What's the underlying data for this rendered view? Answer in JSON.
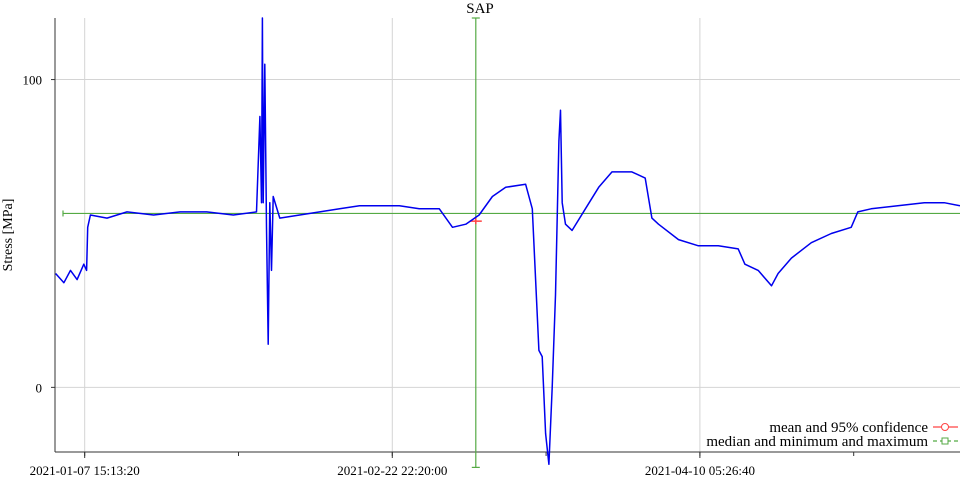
{
  "chart_data": {
    "type": "line",
    "title": "SAP",
    "ylabel": "Stress [MPa]",
    "xlabel": "",
    "ylim": [
      -21,
      120
    ],
    "xlim": [
      "2021-01-03 04:00:00",
      "2021-05-19 09:00:00"
    ],
    "x_ticks": [
      {
        "x": "2021-01-07 15:13:20",
        "label": "2021-01-07 15:13:20"
      },
      {
        "x": "2021-02-22 22:20:00",
        "label": "2021-02-22 22:20:00"
      },
      {
        "x": "2021-04-10 05:26:40",
        "label": "2021-04-10 05:26:40"
      }
    ],
    "y_ticks": [
      {
        "y": 0,
        "label": "0"
      },
      {
        "y": 100,
        "label": "100"
      }
    ],
    "grid": true,
    "legend": "bottom-right",
    "colors": {
      "series": "#0000ee",
      "mean": "#ff4444",
      "median": "#55aa44",
      "grid": "#d4d4d4",
      "axis": "#333333"
    },
    "series": [
      {
        "color": "#0000ee",
        "points": [
          [
            "2021-01-03 06:00:00",
            37
          ],
          [
            "2021-01-04 12:00:00",
            34
          ],
          [
            "2021-01-05 12:00:00",
            38
          ],
          [
            "2021-01-06 12:00:00",
            35
          ],
          [
            "2021-01-07 12:00:00",
            40
          ],
          [
            "2021-01-07 22:00:00",
            38
          ],
          [
            "2021-01-08 02:00:00",
            52
          ],
          [
            "2021-01-08 12:00:00",
            56
          ],
          [
            "2021-01-11 00:00:00",
            55
          ],
          [
            "2021-01-14 00:00:00",
            57
          ],
          [
            "2021-01-18 00:00:00",
            56
          ],
          [
            "2021-01-22 00:00:00",
            57
          ],
          [
            "2021-01-26 00:00:00",
            57
          ],
          [
            "2021-01-30 00:00:00",
            56
          ],
          [
            "2021-02-02 12:00:00",
            57
          ],
          [
            "2021-02-03 00:00:00",
            88
          ],
          [
            "2021-02-03 06:00:00",
            60
          ],
          [
            "2021-02-03 09:00:00",
            120
          ],
          [
            "2021-02-03 12:00:00",
            60
          ],
          [
            "2021-02-03 18:00:00",
            105
          ],
          [
            "2021-02-04 00:00:00",
            52
          ],
          [
            "2021-02-04 06:00:00",
            14
          ],
          [
            "2021-02-04 12:00:00",
            60
          ],
          [
            "2021-02-04 18:00:00",
            38
          ],
          [
            "2021-02-05 00:00:00",
            62
          ],
          [
            "2021-02-06 00:00:00",
            55
          ],
          [
            "2021-02-09 00:00:00",
            56
          ],
          [
            "2021-02-12 00:00:00",
            57
          ],
          [
            "2021-02-15 00:00:00",
            58
          ],
          [
            "2021-02-18 00:00:00",
            59
          ],
          [
            "2021-02-21 00:00:00",
            59
          ],
          [
            "2021-02-24 00:00:00",
            59
          ],
          [
            "2021-02-27 00:00:00",
            58
          ],
          [
            "2021-03-02 00:00:00",
            58
          ],
          [
            "2021-03-04 00:00:00",
            52
          ],
          [
            "2021-03-06 00:00:00",
            53
          ],
          [
            "2021-03-08 00:00:00",
            56
          ],
          [
            "2021-03-10 00:00:00",
            62
          ],
          [
            "2021-03-12 00:00:00",
            65
          ],
          [
            "2021-03-15 00:00:00",
            66
          ],
          [
            "2021-03-16 00:00:00",
            58
          ],
          [
            "2021-03-17 00:00:00",
            12
          ],
          [
            "2021-03-17 12:00:00",
            10
          ],
          [
            "2021-03-18 00:00:00",
            -15
          ],
          [
            "2021-03-18 12:00:00",
            -25
          ],
          [
            "2021-03-19 00:00:00",
            0
          ],
          [
            "2021-03-19 12:00:00",
            30
          ],
          [
            "2021-03-20 00:00:00",
            80
          ],
          [
            "2021-03-20 06:00:00",
            90
          ],
          [
            "2021-03-20 12:00:00",
            60
          ],
          [
            "2021-03-21 00:00:00",
            53
          ],
          [
            "2021-03-22 00:00:00",
            51
          ],
          [
            "2021-03-24 00:00:00",
            58
          ],
          [
            "2021-03-26 00:00:00",
            65
          ],
          [
            "2021-03-28 00:00:00",
            70
          ],
          [
            "2021-03-31 00:00:00",
            70
          ],
          [
            "2021-04-02 00:00:00",
            68
          ],
          [
            "2021-04-03 00:00:00",
            55
          ],
          [
            "2021-04-04 00:00:00",
            53
          ],
          [
            "2021-04-07 00:00:00",
            48
          ],
          [
            "2021-04-10 00:00:00",
            46
          ],
          [
            "2021-04-13 00:00:00",
            46
          ],
          [
            "2021-04-16 00:00:00",
            45
          ],
          [
            "2021-04-17 00:00:00",
            40
          ],
          [
            "2021-04-19 00:00:00",
            38
          ],
          [
            "2021-04-21 00:00:00",
            33
          ],
          [
            "2021-04-22 00:00:00",
            37
          ],
          [
            "2021-04-24 00:00:00",
            42
          ],
          [
            "2021-04-27 00:00:00",
            47
          ],
          [
            "2021-04-30 00:00:00",
            50
          ],
          [
            "2021-05-03 00:00:00",
            52
          ],
          [
            "2021-05-04 00:00:00",
            57
          ],
          [
            "2021-05-06 00:00:00",
            58
          ],
          [
            "2021-05-10 00:00:00",
            59
          ],
          [
            "2021-05-14 00:00:00",
            60
          ],
          [
            "2021-05-17 00:00:00",
            60
          ],
          [
            "2021-05-19 09:00:00",
            59
          ]
        ]
      }
    ],
    "summary": [
      {
        "name": "mean and 95% confidence",
        "x": "2021-03-07 12:00:00",
        "center": 54,
        "low": 53,
        "high": 55
      },
      {
        "name": "median and minimum and maximum",
        "x": "2021-03-07 12:00:00",
        "center": 56.5,
        "low": -26,
        "high": 120
      }
    ]
  }
}
